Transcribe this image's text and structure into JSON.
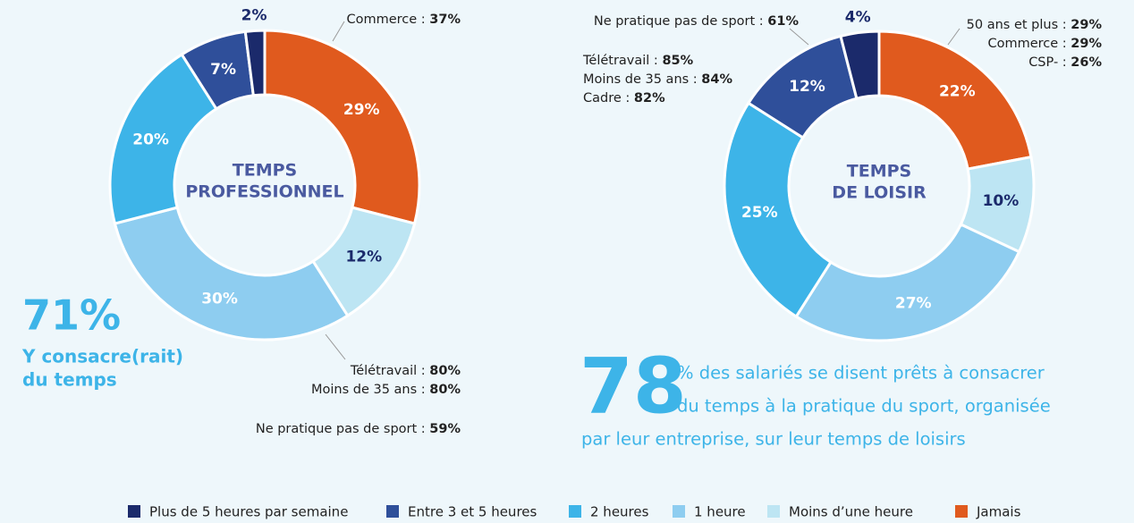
{
  "chart_data": [
    {
      "type": "pie",
      "title": [
        "TEMPS",
        "PROFESSIONNEL"
      ],
      "values": [
        2,
        7,
        20,
        30,
        12,
        29
      ],
      "value_labels": [
        "2%",
        "7%",
        "20%",
        "30%",
        "12%",
        "29%"
      ],
      "annotations": [
        [
          [
            "Commerce : ",
            "37%"
          ]
        ],
        [
          [
            "Télétravail : ",
            "80%"
          ],
          [
            "Moins de 35 ans : ",
            "80%"
          ]
        ],
        [
          [
            "Ne pratique pas de sport : ",
            "59%"
          ]
        ]
      ],
      "highlight": {
        "value": "71%",
        "text": [
          "Y consacre(rait)",
          "du temps"
        ]
      }
    },
    {
      "type": "pie",
      "title": [
        "TEMPS",
        "DE LOISIR"
      ],
      "values": [
        4,
        12,
        25,
        27,
        10,
        22
      ],
      "value_labels": [
        "4%",
        "12%",
        "25%",
        "27%",
        "10%",
        "22%"
      ],
      "annotations": [
        [
          [
            "Ne pratique pas de sport : ",
            "61%"
          ]
        ],
        [
          [
            "Télétravail : ",
            "85%"
          ],
          [
            "Moins de 35 ans : ",
            "84%"
          ],
          [
            "Cadre : ",
            "82%"
          ]
        ],
        [
          [
            "50 ans et plus : ",
            "29%"
          ],
          [
            "Commerce : ",
            "29%"
          ],
          [
            "CSP- : ",
            "26%"
          ]
        ]
      ],
      "highlight": {
        "value": "78",
        "text": [
          "% des salariés se disent prêts à consacrer",
          "du temps à la pratique du sport, organisée",
          "par leur entreprise, sur leur temps de loisirs"
        ]
      }
    }
  ],
  "legend": {
    "categories": [
      "Plus de 5 heures par semaine",
      "Entre 3 et 5 heures",
      "2 heures",
      "1 heure",
      "Moins d’une heure",
      "Jamais"
    ],
    "colors": [
      "#1b2a6b",
      "#2f4f9a",
      "#3db4e8",
      "#8ecdf0",
      "#bde5f3",
      "#e05a1e"
    ]
  }
}
